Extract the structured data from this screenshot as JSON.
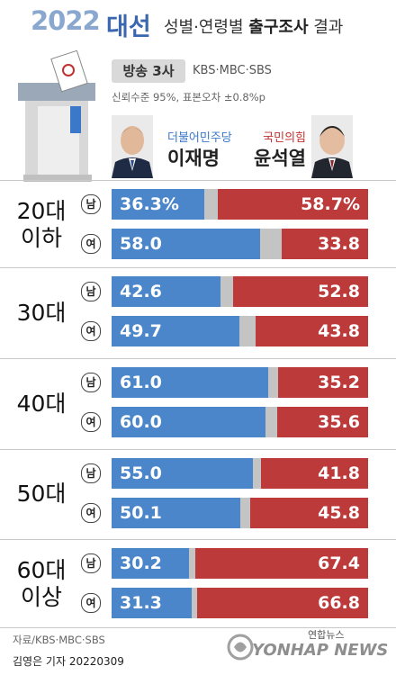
{
  "header": {
    "year": "2022",
    "election": "대선",
    "subtitle_plain": "성별·연령별",
    "subtitle_bold": "출구조사",
    "subtitle_end": "결과",
    "badge": "방송 3사",
    "broadcasters": "KBS·MBC·SBS",
    "confidence": "신뢰수준 95%, 표본오차 ±0.8%p"
  },
  "candidates": {
    "lee": {
      "party": "더불어민주당",
      "name": "이재명",
      "color": "#4a86c9"
    },
    "yoon": {
      "party": "국민의힘",
      "name": "윤석열",
      "color": "#bc3a3a"
    }
  },
  "gender_labels": {
    "male": "남",
    "female": "여"
  },
  "chart_data": {
    "type": "bar",
    "stacked": true,
    "orientation": "horizontal",
    "title": "2022 대선 성별·연령별 출구조사 결과",
    "groups": [
      {
        "age": "20대 이하",
        "rows": [
          {
            "gender": "남",
            "lee": "36.3%",
            "yoon": "58.7%"
          },
          {
            "gender": "여",
            "lee": "58.0",
            "yoon": "33.8"
          }
        ]
      },
      {
        "age": "30대",
        "rows": [
          {
            "gender": "남",
            "lee": "42.6",
            "yoon": "52.8"
          },
          {
            "gender": "여",
            "lee": "49.7",
            "yoon": "43.8"
          }
        ]
      },
      {
        "age": "40대",
        "rows": [
          {
            "gender": "남",
            "lee": "61.0",
            "yoon": "35.2"
          },
          {
            "gender": "여",
            "lee": "60.0",
            "yoon": "35.6"
          }
        ]
      },
      {
        "age": "50대",
        "rows": [
          {
            "gender": "남",
            "lee": "55.0",
            "yoon": "41.8"
          },
          {
            "gender": "여",
            "lee": "50.1",
            "yoon": "45.8"
          }
        ]
      },
      {
        "age": "60대 이상",
        "rows": [
          {
            "gender": "남",
            "lee": "30.2",
            "yoon": "67.4"
          },
          {
            "gender": "여",
            "lee": "31.3",
            "yoon": "66.8"
          }
        ]
      }
    ],
    "series": [
      {
        "name": "이재명"
      },
      {
        "name": "윤석열"
      }
    ],
    "xlim": [
      0,
      100
    ]
  },
  "footer": {
    "source": "자료/KBS·MBC·SBS",
    "reporter": "김영은 기자  20220309",
    "agency_kr": "연합뉴스",
    "agency_en": "YONHAP NEWS"
  }
}
